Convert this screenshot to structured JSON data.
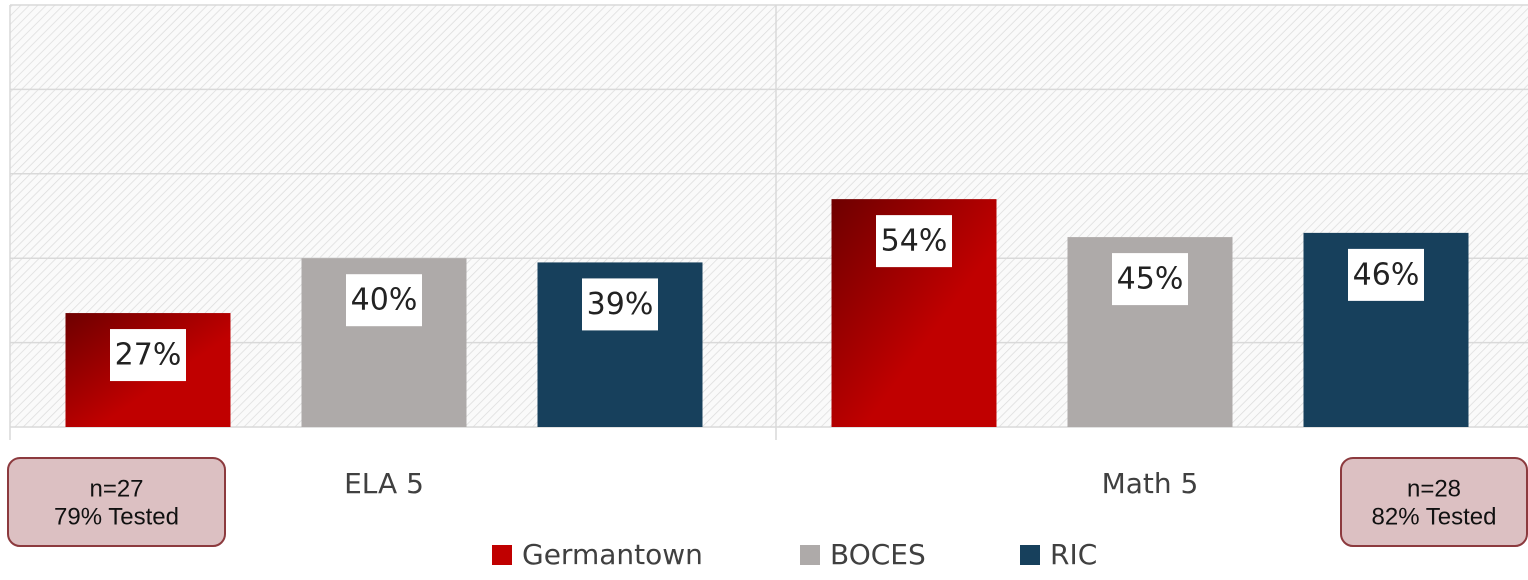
{
  "chart_data": {
    "type": "bar",
    "categories": [
      "ELA 5",
      "Math 5"
    ],
    "series": [
      {
        "name": "Germantown",
        "color": "#c00000",
        "values": [
          27,
          54
        ],
        "value_labels": [
          "27%",
          "54%"
        ]
      },
      {
        "name": "BOCES",
        "color": "#aeaaa9",
        "values": [
          40,
          45
        ],
        "value_labels": [
          "40%",
          "45%"
        ]
      },
      {
        "name": "RIC",
        "color": "#17405c",
        "values": [
          39,
          46
        ],
        "value_labels": [
          "39%",
          "46%"
        ]
      }
    ],
    "ylim": [
      0,
      100
    ],
    "yticks": [
      0,
      20,
      40,
      60,
      80,
      100
    ],
    "grid": true,
    "annotations": [
      [
        "n=27",
        "79% Tested"
      ],
      [
        "n=28",
        "82% Tested"
      ]
    ]
  }
}
